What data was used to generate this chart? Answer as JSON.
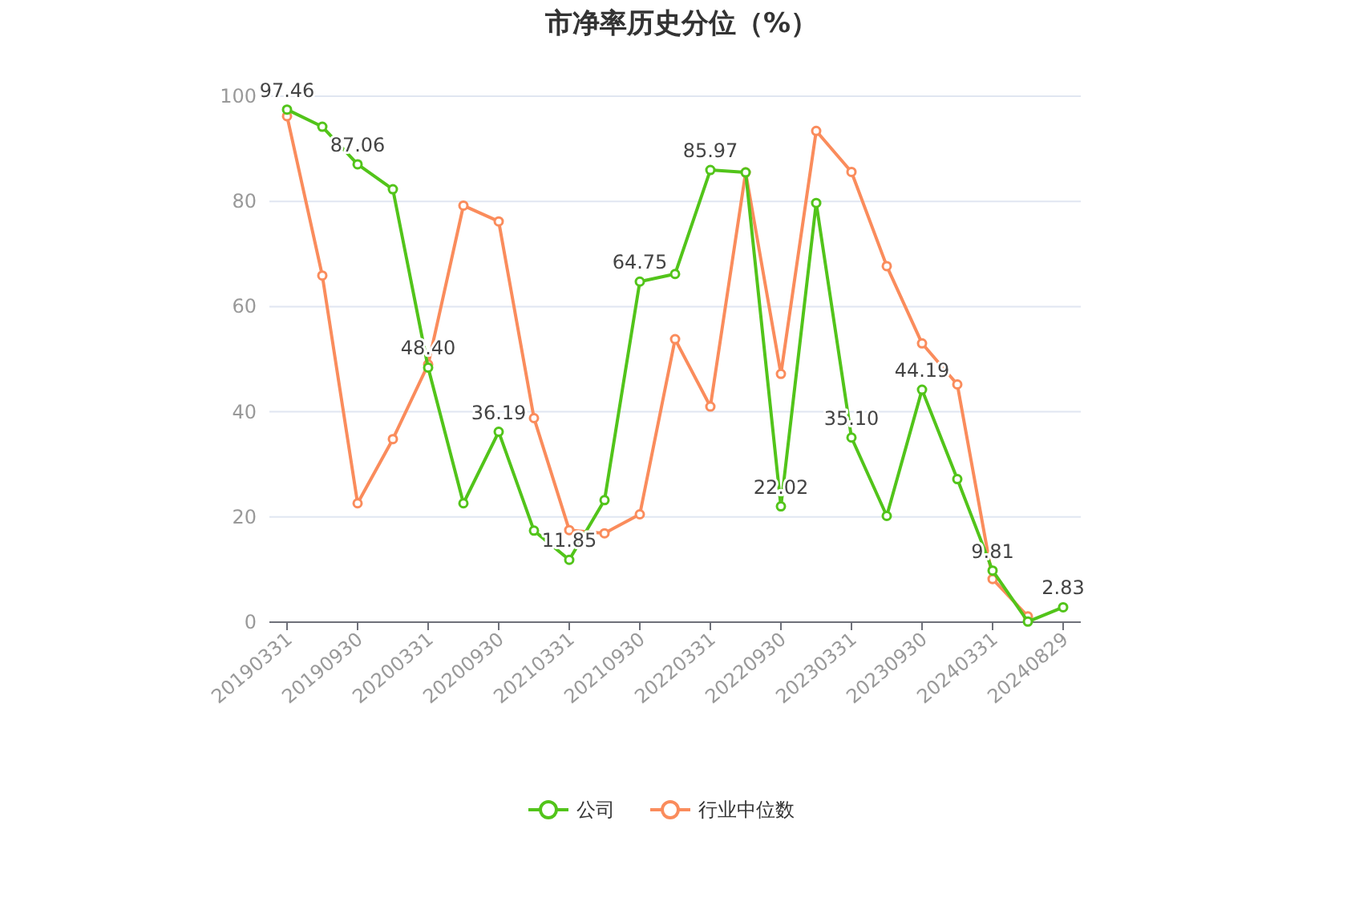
{
  "chart_data": {
    "type": "line",
    "title": "市净率历史分位（%）",
    "categories": [
      "20190331",
      null,
      "20190930",
      null,
      "20200331",
      null,
      "20200930",
      null,
      "20210331",
      null,
      "20210930",
      null,
      "20220331",
      null,
      "20220930",
      null,
      "20230331",
      null,
      "20230930",
      null,
      "20240331",
      null,
      "20240829"
    ],
    "series": [
      {
        "name": "公司",
        "color": "#52c41a",
        "values": [
          97.46,
          94.2,
          87.06,
          82.3,
          48.4,
          22.6,
          36.19,
          17.4,
          11.85,
          23.2,
          64.75,
          66.2,
          85.97,
          85.5,
          22.02,
          79.7,
          35.1,
          20.2,
          44.19,
          27.2,
          9.81,
          0.1,
          2.83
        ],
        "value_labels": [
          "97.46",
          null,
          "87.06",
          null,
          "48.40",
          null,
          "36.19",
          null,
          "11.85",
          null,
          "64.75",
          null,
          "85.97",
          null,
          "22.02",
          null,
          "35.10",
          null,
          "44.19",
          null,
          "9.81",
          null,
          "2.83"
        ]
      },
      {
        "name": "行业中位数",
        "color": "#fa8c5c",
        "values": [
          96.2,
          65.9,
          22.6,
          34.8,
          49.0,
          79.2,
          76.2,
          38.8,
          17.5,
          16.9,
          20.5,
          53.8,
          41.0,
          85.5,
          47.2,
          93.4,
          85.6,
          67.7,
          53.0,
          45.2,
          8.2,
          1.1,
          null
        ]
      }
    ],
    "ylim": [
      0,
      100
    ],
    "yticks": [
      0,
      20,
      40,
      60,
      80,
      100
    ],
    "grid": "y",
    "legend": "bottom",
    "marker": "circle"
  }
}
